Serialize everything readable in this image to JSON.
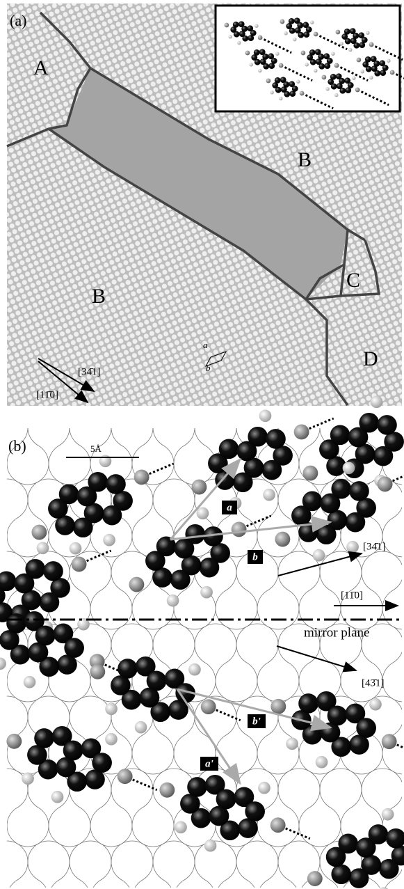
{
  "panel_a": {
    "label": "(a)",
    "domains": [
      "A",
      "B",
      "B",
      "C",
      "D"
    ],
    "cell_vectors": [
      "a",
      "b"
    ],
    "directions": [
      "[34̄1]",
      "[11̄0]"
    ]
  },
  "panel_b": {
    "label": "(b)",
    "scale_bar": "5Å",
    "vectors": [
      "a",
      "b",
      "b'",
      "a'"
    ],
    "directions": [
      "[34̄1]",
      "[11̄0]",
      "[43̄1]"
    ],
    "mirror_label": "mirror plane"
  }
}
